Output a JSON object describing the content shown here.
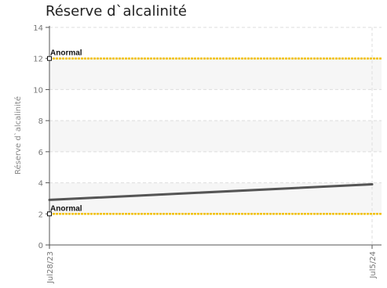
{
  "chart_data": {
    "type": "line",
    "title": "Réserve d`alcalinité",
    "ylabel": "Réserve d`alcalinité",
    "xlabel": "",
    "x": [
      "Jul28/23",
      "Jul5/24"
    ],
    "ylim": [
      0,
      14
    ],
    "yticks": [
      0,
      2,
      4,
      6,
      8,
      10,
      12,
      14
    ],
    "grid": true,
    "series": [
      {
        "values": [
          2.9,
          3.9
        ],
        "color": "#555555"
      }
    ],
    "reference_lines": [
      {
        "label": "Anormal",
        "value": 12,
        "color": "#f2c200"
      },
      {
        "label": "Anormal",
        "value": 2,
        "color": "#f2c200"
      }
    ]
  }
}
